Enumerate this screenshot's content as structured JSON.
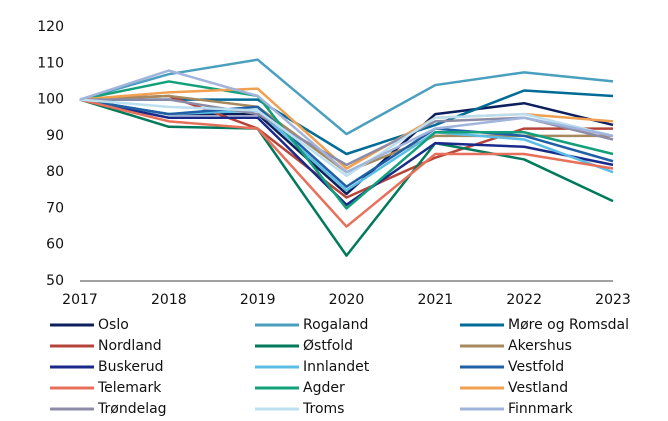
{
  "chart_data": {
    "type": "line",
    "x": [
      2017,
      2018,
      2019,
      2020,
      2021,
      2022,
      2023
    ],
    "xlim": [
      2017,
      2023
    ],
    "xticks": [
      2017,
      2018,
      2019,
      2020,
      2021,
      2022,
      2023
    ],
    "ylim": [
      50,
      120
    ],
    "yticks": [
      50,
      60,
      70,
      80,
      90,
      100,
      110,
      120
    ],
    "series": [
      {
        "name": "Oslo",
        "color": "#0d1f5c",
        "values": [
          100,
          96,
          96,
          74,
          96,
          99,
          93
        ]
      },
      {
        "name": "Rogaland",
        "color": "#4a9fbf",
        "values": [
          100,
          107,
          111,
          90.5,
          104,
          107.5,
          105
        ]
      },
      {
        "name": "Møre og Romsdal",
        "color": "#006b96",
        "values": [
          100,
          100,
          100,
          85,
          93,
          102.5,
          101
        ]
      },
      {
        "name": "Nordland",
        "color": "#b5453a",
        "values": [
          100,
          101,
          92,
          73,
          84,
          92,
          92
        ]
      },
      {
        "name": "Østfold",
        "color": "#007a5a",
        "values": [
          100,
          92.5,
          92,
          57,
          88,
          83.5,
          72
        ]
      },
      {
        "name": "Akershus",
        "color": "#a68a5e",
        "values": [
          100,
          101,
          98,
          80,
          90,
          90,
          90
        ]
      },
      {
        "name": "Buskerud",
        "color": "#1a2a8a",
        "values": [
          100,
          95,
          95,
          71,
          88,
          87,
          82
        ]
      },
      {
        "name": "Innlandet",
        "color": "#5bbde6",
        "values": [
          100,
          96,
          97,
          75,
          91,
          89,
          80
        ]
      },
      {
        "name": "Vestfold",
        "color": "#1f5fa6",
        "values": [
          100,
          96,
          98,
          76,
          92,
          90,
          83
        ]
      },
      {
        "name": "Telemark",
        "color": "#e8705a",
        "values": [
          100,
          94,
          92,
          65,
          85,
          85,
          81
        ]
      },
      {
        "name": "Agder",
        "color": "#12a07a",
        "values": [
          100,
          105,
          101,
          70,
          91,
          91,
          85
        ]
      },
      {
        "name": "Vestland",
        "color": "#f0a050",
        "values": [
          100,
          102,
          103,
          81,
          95,
          96,
          94
        ]
      },
      {
        "name": "Trøndelag",
        "color": "#8c8ca8",
        "values": [
          100,
          100,
          96,
          82,
          94,
          95,
          89
        ]
      },
      {
        "name": "Troms",
        "color": "#bcdff0",
        "values": [
          100,
          98,
          97,
          79,
          95,
          96,
          90
        ]
      },
      {
        "name": "Finnmark",
        "color": "#a0b4dc",
        "values": [
          100,
          108,
          101,
          80,
          92,
          95,
          90
        ]
      }
    ]
  }
}
